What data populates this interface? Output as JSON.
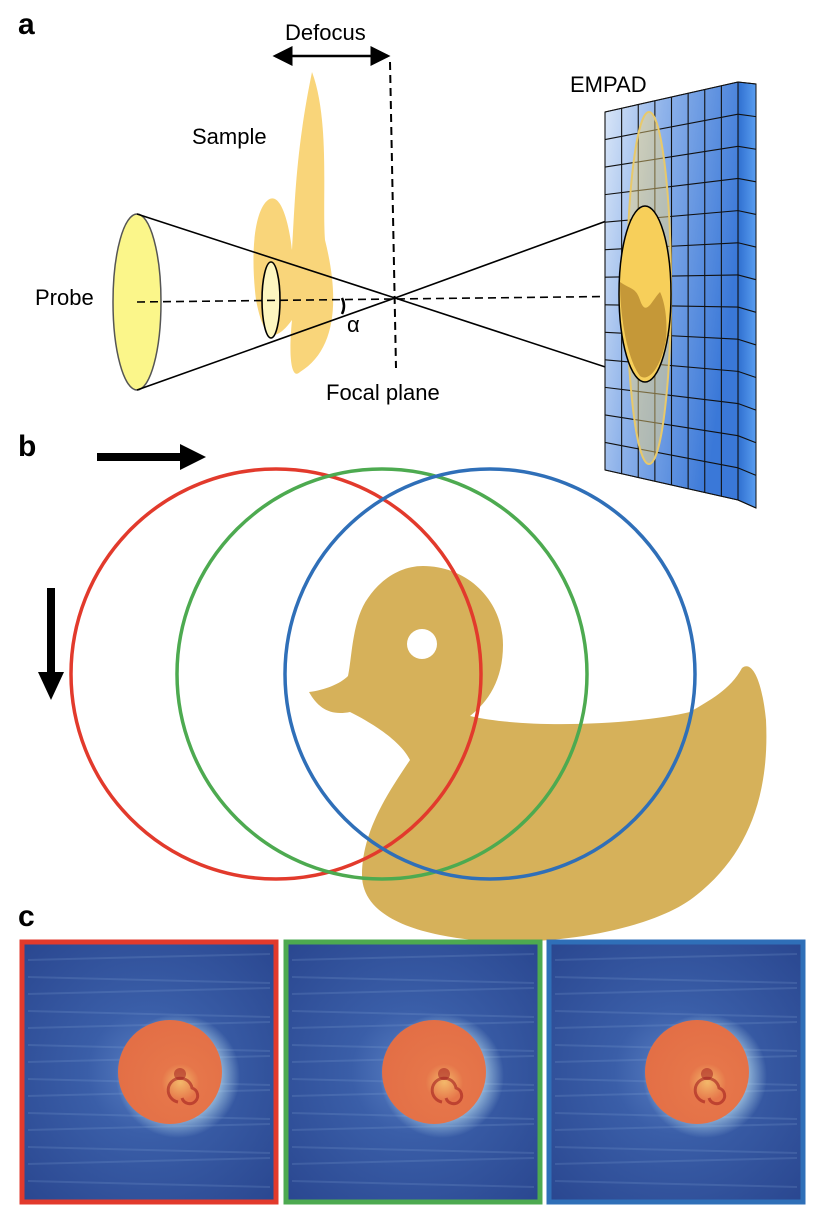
{
  "panels": {
    "a": {
      "letter": "a",
      "labels": {
        "defocus": "Defocus",
        "sample": "Sample",
        "probe": "Probe",
        "alpha": "α",
        "focal_plane": "Focal plane",
        "empad": "EMPAD"
      }
    },
    "b": {
      "letter": "b",
      "scan_directions": [
        "horizontal (right)",
        "vertical (down)"
      ],
      "probe_positions": [
        {
          "name": "red",
          "color": "#e23a2c"
        },
        {
          "name": "green",
          "color": "#4daa50"
        },
        {
          "name": "blue",
          "color": "#2f6fb8"
        }
      ]
    },
    "c": {
      "letter": "c",
      "diffraction_frames": [
        {
          "name": "red",
          "border_color": "#e23a2c"
        },
        {
          "name": "green",
          "border_color": "#4daa50"
        },
        {
          "name": "blue",
          "border_color": "#2f6fb8"
        }
      ]
    }
  },
  "colors": {
    "sample": "#f9d57a",
    "duck": "#d6b15a",
    "probe_fill": "#fbf68a",
    "detector": "#4a88dc",
    "pattern_bg": "#2f4f9a",
    "pattern_disk": "#e8704a"
  }
}
